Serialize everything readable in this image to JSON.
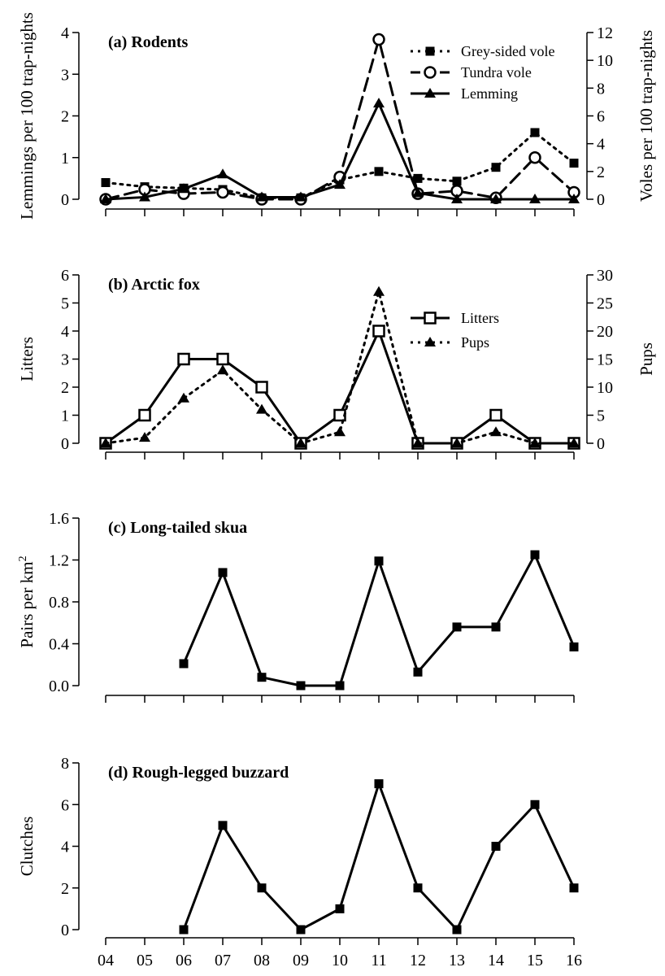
{
  "chart_data": [
    {
      "type": "line",
      "title": "(a) Rodents",
      "categories": [
        "04",
        "05",
        "06",
        "07",
        "08",
        "09",
        "10",
        "11",
        "12",
        "13",
        "14",
        "15",
        "16"
      ],
      "ylabel": "Lemmings per 100 trap-nights",
      "ylabel_right": "Voles per 100 trap-nights",
      "ylim": [
        0,
        4
      ],
      "yticks": [
        "0",
        "1",
        "2",
        "3",
        "4"
      ],
      "ylim_right": [
        0,
        12
      ],
      "yticks_right": [
        "0",
        "2",
        "4",
        "6",
        "8",
        "10",
        "12"
      ],
      "legend_position": "top-right",
      "series": [
        {
          "name": "Grey-sided vole",
          "axis": "right",
          "marker": "filled-square",
          "line": "dotted",
          "values": [
            1.2,
            0.9,
            0.8,
            0.7,
            0.1,
            0.1,
            1.4,
            2.0,
            1.5,
            1.3,
            2.3,
            4.8,
            2.6
          ]
        },
        {
          "name": "Tundra vole",
          "axis": "right",
          "marker": "open-circle",
          "line": "dashed",
          "values": [
            0.0,
            0.7,
            0.4,
            0.5,
            0.0,
            0.0,
            1.6,
            11.5,
            0.4,
            0.6,
            0.1,
            3.0,
            0.5
          ]
        },
        {
          "name": "Lemming",
          "axis": "left",
          "marker": "filled-triangle",
          "line": "solid",
          "values": [
            0.0,
            0.05,
            0.25,
            0.6,
            0.05,
            0.05,
            0.35,
            2.3,
            0.15,
            0.0,
            0.0,
            0.0,
            0.0
          ]
        }
      ]
    },
    {
      "type": "line",
      "title": "(b) Arctic fox",
      "categories": [
        "04",
        "05",
        "06",
        "07",
        "08",
        "09",
        "10",
        "11",
        "12",
        "13",
        "14",
        "15",
        "16"
      ],
      "ylabel": "Litters",
      "ylabel_right": "Pups",
      "ylim": [
        0,
        6
      ],
      "yticks": [
        "0",
        "1",
        "2",
        "3",
        "4",
        "5",
        "6"
      ],
      "ylim_right": [
        0,
        30
      ],
      "yticks_right": [
        "0",
        "5",
        "10",
        "15",
        "20",
        "25",
        "30"
      ],
      "legend_position": "top-right",
      "series": [
        {
          "name": "Litters",
          "axis": "left",
          "marker": "open-square",
          "line": "solid",
          "values": [
            0,
            1,
            3,
            3,
            2,
            0,
            1,
            4,
            0,
            0,
            1,
            0,
            0
          ]
        },
        {
          "name": "Pups",
          "axis": "right",
          "marker": "filled-triangle",
          "line": "dotted",
          "values": [
            0,
            1,
            8,
            13,
            6,
            0,
            2,
            27,
            0,
            0,
            2,
            0,
            0
          ]
        }
      ]
    },
    {
      "type": "line",
      "title": "(c) Long-tailed skua",
      "categories": [
        "04",
        "05",
        "06",
        "07",
        "08",
        "09",
        "10",
        "11",
        "12",
        "13",
        "14",
        "15",
        "16"
      ],
      "ylabel": "Pairs per km",
      "ylabel_superscript": "2",
      "ylim": [
        0,
        1.6
      ],
      "yticks": [
        "0.0",
        "0.4",
        "0.8",
        "1.2",
        "1.6"
      ],
      "series": [
        {
          "marker": "filled-square",
          "line": "solid",
          "values": [
            null,
            null,
            0.21,
            1.08,
            0.08,
            0.0,
            0.0,
            1.19,
            0.13,
            0.56,
            0.56,
            1.25,
            0.37
          ]
        }
      ]
    },
    {
      "type": "line",
      "title": "(d) Rough-legged buzzard",
      "categories": [
        "04",
        "05",
        "06",
        "07",
        "08",
        "09",
        "10",
        "11",
        "12",
        "13",
        "14",
        "15",
        "16"
      ],
      "ylabel": "Clutches",
      "ylim": [
        0,
        8
      ],
      "yticks": [
        "0",
        "2",
        "4",
        "6",
        "8"
      ],
      "show_xtick_labels": true,
      "series": [
        {
          "marker": "filled-square",
          "line": "solid",
          "values": [
            null,
            null,
            0,
            5,
            2,
            0,
            1,
            7,
            2,
            0,
            4,
            6,
            2
          ]
        }
      ]
    }
  ]
}
